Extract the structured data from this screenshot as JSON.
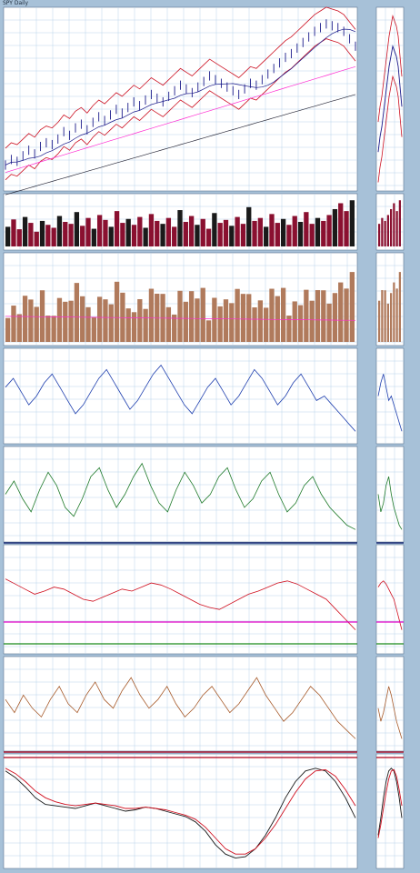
{
  "app": {
    "title": "SPY  Daily",
    "footer_left": "",
    "footer_right": ""
  },
  "colors": {
    "frame": "#a7c1d8",
    "panel_bg": "#ffffff",
    "grid": "#b9d4ea",
    "price_up": "#1a1a8a",
    "band_red": "#cc1122",
    "ma_magenta": "#ff2bd1",
    "ma_dark": "#2a2a3a",
    "volume_maroon": "#8a1030",
    "volume_black": "#1a1a1a",
    "osc_brown": "#b07a5c",
    "line_blue": "#1f3fae",
    "line_green": "#1f7a2a",
    "line_red": "#d01020",
    "line_brown": "#a75a2a",
    "hline_magenta": "#e000c8",
    "hline_red": "#b00018",
    "hline_green": "#1a8a1a",
    "hline_navy": "#0c1a6a"
  },
  "chart_data": [
    {
      "id": "price",
      "type": "line",
      "series": [
        {
          "values": [
            52,
            55,
            54,
            57,
            60,
            58,
            62,
            64,
            63,
            66,
            70,
            68,
            72,
            74,
            71,
            75,
            78,
            76,
            79,
            82,
            80,
            83,
            86,
            84,
            87,
            90,
            88,
            86,
            89,
            92,
            95,
            93,
            91,
            94,
            97,
            100,
            98,
            96,
            94,
            92,
            90,
            93,
            96,
            95,
            98,
            101,
            104,
            107,
            110,
            112,
            115,
            118,
            121,
            124,
            126,
            128,
            127,
            126,
            124,
            120,
            116
          ]
        }
      ]
    },
    {
      "id": "volume",
      "type": "bar",
      "series": [
        {
          "values": [
            40,
            55,
            35,
            60,
            48,
            30,
            52,
            44,
            38,
            62,
            50,
            46,
            70,
            42,
            58,
            36,
            64,
            54,
            40,
            72,
            48,
            56,
            44,
            60,
            38,
            66,
            52,
            46,
            58,
            40,
            74,
            50,
            62,
            44,
            56,
            36,
            68,
            48,
            54,
            42,
            60,
            46,
            80,
            52,
            58,
            40,
            66,
            48,
            56,
            44,
            62,
            50,
            70,
            46,
            58,
            52,
            64,
            76,
            88,
            72,
            94
          ]
        }
      ]
    },
    {
      "id": "oscillator-blue",
      "type": "line",
      "series": [
        {
          "values": [
            60,
            70,
            55,
            40,
            50,
            65,
            75,
            60,
            45,
            30,
            40,
            55,
            70,
            80,
            65,
            50,
            35,
            45,
            60,
            75,
            85,
            70,
            55,
            40,
            30,
            45,
            60,
            70,
            55,
            40,
            50,
            65,
            80,
            70,
            55,
            40,
            50,
            65,
            75,
            60,
            45,
            50,
            40,
            30,
            20,
            10
          ]
        }
      ]
    },
    {
      "id": "oscillator-green",
      "type": "line",
      "series": [
        {
          "values": [
            50,
            65,
            45,
            30,
            55,
            75,
            60,
            35,
            25,
            45,
            70,
            80,
            55,
            35,
            50,
            70,
            85,
            60,
            40,
            30,
            55,
            75,
            60,
            40,
            50,
            70,
            80,
            55,
            35,
            45,
            65,
            75,
            50,
            30,
            40,
            60,
            70,
            50,
            35,
            25,
            15,
            10
          ]
        }
      ]
    },
    {
      "id": "oscillator-red",
      "type": "line",
      "series": [
        {
          "values": [
            70,
            65,
            60,
            55,
            58,
            62,
            60,
            55,
            50,
            48,
            52,
            56,
            60,
            58,
            62,
            66,
            64,
            60,
            55,
            50,
            45,
            42,
            40,
            45,
            50,
            55,
            58,
            62,
            66,
            68,
            65,
            60,
            55,
            50,
            40,
            30,
            20
          ]
        }
      ]
    },
    {
      "id": "oscillator-brown",
      "type": "line",
      "series": [
        {
          "values": [
            55,
            40,
            60,
            45,
            35,
            55,
            70,
            50,
            40,
            60,
            75,
            55,
            45,
            65,
            80,
            60,
            45,
            55,
            70,
            50,
            35,
            45,
            60,
            70,
            55,
            40,
            50,
            65,
            80,
            60,
            45,
            30,
            40,
            55,
            70,
            60,
            45,
            30,
            20,
            10
          ]
        }
      ]
    },
    {
      "id": "oscillator-bottom",
      "type": "line",
      "series": [
        {
          "values": [
            70,
            65,
            58,
            50,
            45,
            44,
            43,
            42,
            44,
            46,
            44,
            42,
            40,
            41,
            43,
            42,
            40,
            38,
            36,
            32,
            25,
            15,
            8,
            5,
            6,
            12,
            22,
            35,
            50,
            62,
            70,
            72,
            70,
            62,
            50,
            35
          ]
        },
        {
          "values": [
            72,
            68,
            62,
            55,
            50,
            47,
            45,
            44,
            45,
            46,
            45,
            44,
            42,
            42,
            43,
            42,
            41,
            39,
            37,
            34,
            28,
            20,
            12,
            8,
            8,
            12,
            20,
            30,
            42,
            54,
            64,
            70,
            71,
            66,
            56,
            44
          ]
        }
      ]
    }
  ]
}
